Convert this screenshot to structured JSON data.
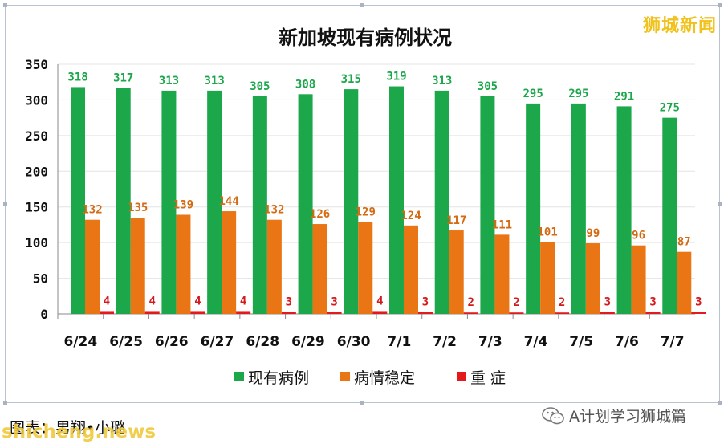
{
  "watermark": "狮城新闻",
  "caption": "图表：男翔•小璐",
  "site_watermark": "shicheng.news",
  "source_account": "A计划学习狮城篇",
  "colors": {
    "active": "#1ba74a",
    "stable": "#ea7514",
    "critical": "#e31a1c",
    "active_label": "#1ba74a",
    "stable_label": "#d46a12",
    "critical_label": "#d4191c",
    "grid": "#e4e4e4",
    "axis": "#8a8a8a"
  },
  "chart_data": {
    "type": "bar",
    "title": "新加坡现有病例状况",
    "categories": [
      "6/24",
      "6/25",
      "6/26",
      "6/27",
      "6/28",
      "6/29",
      "6/30",
      "7/1",
      "7/2",
      "7/3",
      "7/4",
      "7/5",
      "7/6",
      "7/7"
    ],
    "series": [
      {
        "name": "现有病例",
        "values": [
          318,
          317,
          313,
          313,
          305,
          308,
          315,
          319,
          313,
          305,
          295,
          295,
          291,
          275
        ]
      },
      {
        "name": "病情稳定",
        "values": [
          132,
          135,
          139,
          144,
          132,
          126,
          129,
          124,
          117,
          111,
          101,
          99,
          96,
          87
        ]
      },
      {
        "name": "重 症",
        "values": [
          4,
          4,
          4,
          4,
          3,
          3,
          4,
          3,
          2,
          2,
          2,
          3,
          3,
          3
        ]
      }
    ],
    "yticks": [
      0,
      50,
      100,
      150,
      200,
      250,
      300,
      350
    ],
    "ylim": [
      0,
      350
    ],
    "grid": true,
    "legend": "bottom"
  }
}
